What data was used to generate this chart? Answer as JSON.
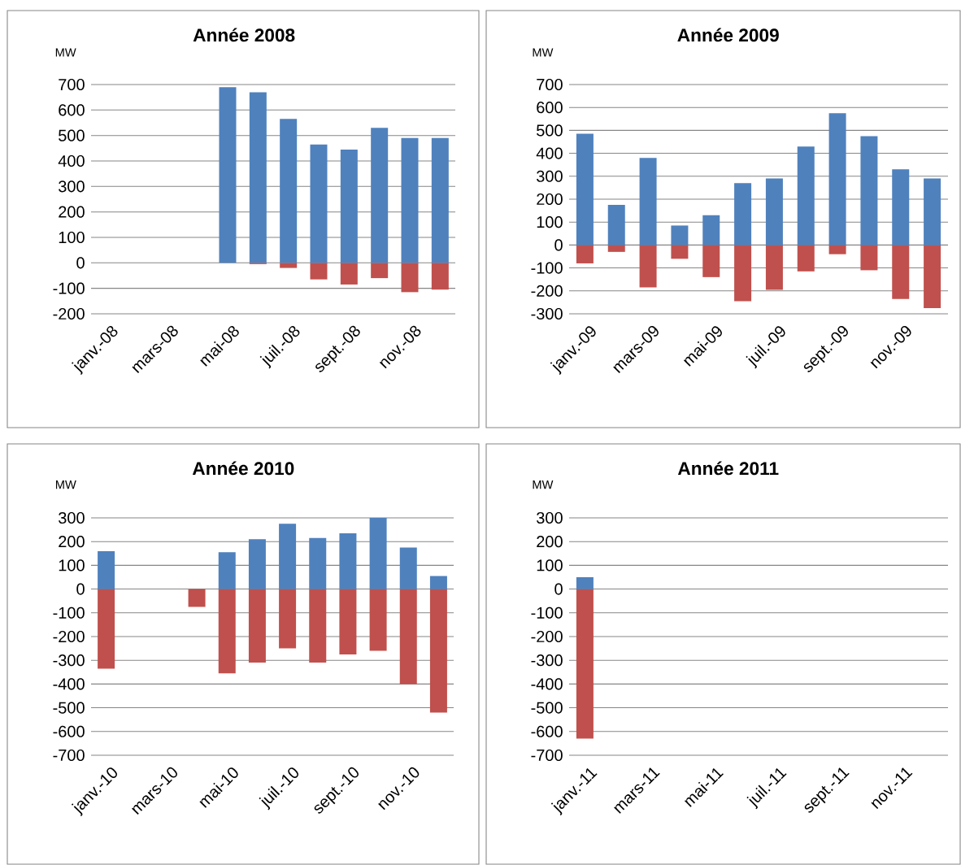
{
  "chart_data": [
    {
      "type": "bar",
      "title": "Année 2008",
      "ylabel": "MW",
      "categories": [
        "janv.-08",
        null,
        "mars-08",
        null,
        "mai-08",
        null,
        "juil.-08",
        null,
        "sept.-08",
        null,
        "nov.-08",
        null
      ],
      "series": [
        {
          "color": "#4f81bd",
          "values": [
            null,
            null,
            null,
            null,
            690,
            670,
            565,
            465,
            445,
            530,
            490,
            490
          ]
        },
        {
          "color": "#c0504d",
          "values": [
            null,
            null,
            null,
            null,
            null,
            -5,
            -20,
            -65,
            -85,
            -60,
            -115,
            -105
          ]
        }
      ],
      "stacked": true,
      "ylim": [
        -200,
        700
      ],
      "yticks": [
        -200,
        -100,
        0,
        100,
        200,
        300,
        400,
        500,
        600,
        700
      ],
      "grid": "y"
    },
    {
      "type": "bar",
      "title": "Année 2009",
      "ylabel": "MW",
      "categories": [
        "janv.-09",
        null,
        "mars-09",
        null,
        "mai-09",
        null,
        "juil.-09",
        null,
        "sept.-09",
        null,
        "nov.-09",
        null
      ],
      "series": [
        {
          "color": "#4f81bd",
          "values": [
            485,
            175,
            380,
            85,
            130,
            270,
            290,
            430,
            575,
            475,
            330,
            290
          ]
        },
        {
          "color": "#c0504d",
          "values": [
            -80,
            -30,
            -185,
            -60,
            -140,
            -245,
            -195,
            -115,
            -40,
            -110,
            -235,
            -275
          ]
        }
      ],
      "stacked": true,
      "ylim": [
        -300,
        700
      ],
      "yticks": [
        -300,
        -200,
        -100,
        0,
        100,
        200,
        300,
        400,
        500,
        600,
        700
      ],
      "grid": "y"
    },
    {
      "type": "bar",
      "title": "Année 2010",
      "ylabel": "MW",
      "categories": [
        "janv.-10",
        null,
        "mars-10",
        null,
        "mai-10",
        null,
        "juil.-10",
        null,
        "sept.-10",
        null,
        "nov.-10",
        null
      ],
      "series": [
        {
          "color": "#4f81bd",
          "values": [
            160,
            null,
            null,
            null,
            155,
            210,
            275,
            215,
            235,
            300,
            175,
            55
          ]
        },
        {
          "color": "#c0504d",
          "values": [
            -335,
            null,
            null,
            -75,
            -355,
            -310,
            -250,
            -310,
            -275,
            -260,
            -400,
            -520
          ]
        }
      ],
      "stacked": true,
      "ylim": [
        -700,
        300
      ],
      "yticks": [
        -700,
        -600,
        -500,
        -400,
        -300,
        -200,
        -100,
        0,
        100,
        200,
        300
      ],
      "grid": "y"
    },
    {
      "type": "bar",
      "title": "Année 2011",
      "ylabel": "MW",
      "categories": [
        "janv.-11",
        null,
        "mars-11",
        null,
        "mai-11",
        null,
        "juil.-11",
        null,
        "sept.-11",
        null,
        "nov.-11",
        null
      ],
      "series": [
        {
          "color": "#4f81bd",
          "values": [
            50,
            null,
            null,
            null,
            null,
            null,
            null,
            null,
            null,
            null,
            null,
            null
          ]
        },
        {
          "color": "#c0504d",
          "values": [
            -630,
            null,
            null,
            null,
            null,
            null,
            null,
            null,
            null,
            null,
            null,
            null
          ]
        }
      ],
      "stacked": true,
      "ylim": [
        -700,
        300
      ],
      "yticks": [
        -700,
        -600,
        -500,
        -400,
        -300,
        -200,
        -100,
        0,
        100,
        200,
        300
      ],
      "grid": "y"
    }
  ]
}
